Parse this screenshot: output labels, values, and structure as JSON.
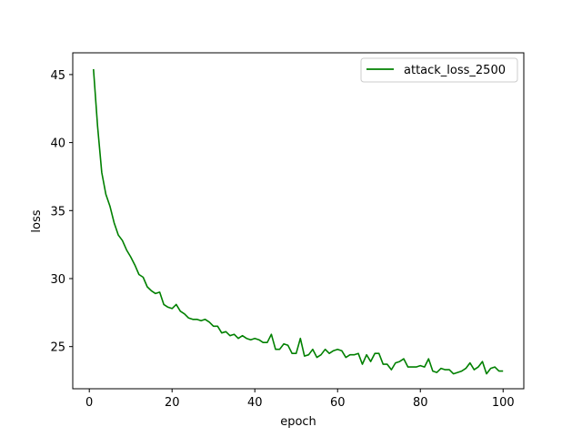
{
  "chart_data": {
    "type": "line",
    "xlabel": "epoch",
    "ylabel": "loss",
    "xlim": [
      -4,
      105
    ],
    "ylim": [
      21.9,
      46.6
    ],
    "xticks": [
      0,
      20,
      40,
      60,
      80,
      100
    ],
    "yticks": [
      25,
      30,
      35,
      40,
      45
    ],
    "legend_position": "top-right",
    "grid": false,
    "series": [
      {
        "name": "attack_loss_2500",
        "color": "#008000",
        "x": [
          1,
          2,
          3,
          4,
          5,
          6,
          7,
          8,
          9,
          10,
          11,
          12,
          13,
          14,
          15,
          16,
          17,
          18,
          19,
          20,
          21,
          22,
          23,
          24,
          25,
          26,
          27,
          28,
          29,
          30,
          31,
          32,
          33,
          34,
          35,
          36,
          37,
          38,
          39,
          40,
          41,
          42,
          43,
          44,
          45,
          46,
          47,
          48,
          49,
          50,
          51,
          52,
          53,
          54,
          55,
          56,
          57,
          58,
          59,
          60,
          61,
          62,
          63,
          64,
          65,
          66,
          67,
          68,
          69,
          70,
          71,
          72,
          73,
          74,
          75,
          76,
          77,
          78,
          79,
          80,
          81,
          82,
          83,
          84,
          85,
          86,
          87,
          88,
          89,
          90,
          91,
          92,
          93,
          94,
          95,
          96,
          97,
          98,
          99,
          100
        ],
        "y": [
          45.4,
          41.2,
          37.8,
          36.2,
          35.3,
          34.1,
          33.2,
          32.8,
          32.1,
          31.6,
          31.0,
          30.3,
          30.1,
          29.4,
          29.1,
          28.9,
          29.0,
          28.1,
          27.9,
          27.8,
          28.1,
          27.6,
          27.4,
          27.1,
          27.0,
          27.0,
          26.9,
          27.0,
          26.8,
          26.5,
          26.5,
          26.0,
          26.1,
          25.8,
          25.9,
          25.6,
          25.8,
          25.6,
          25.5,
          25.6,
          25.5,
          25.3,
          25.3,
          25.9,
          24.8,
          24.8,
          25.2,
          25.1,
          24.5,
          24.5,
          25.6,
          24.3,
          24.4,
          24.8,
          24.2,
          24.4,
          24.8,
          24.5,
          24.7,
          24.8,
          24.7,
          24.2,
          24.4,
          24.4,
          24.5,
          23.7,
          24.4,
          23.9,
          24.5,
          24.5,
          23.7,
          23.7,
          23.3,
          23.8,
          23.9,
          24.1,
          23.5,
          23.5,
          23.5,
          23.6,
          23.5,
          24.1,
          23.2,
          23.1,
          23.4,
          23.3,
          23.3,
          23.0,
          23.1,
          23.2,
          23.4,
          23.8,
          23.3,
          23.5,
          23.9,
          23.0,
          23.4,
          23.5,
          23.2,
          23.2
        ]
      }
    ]
  }
}
